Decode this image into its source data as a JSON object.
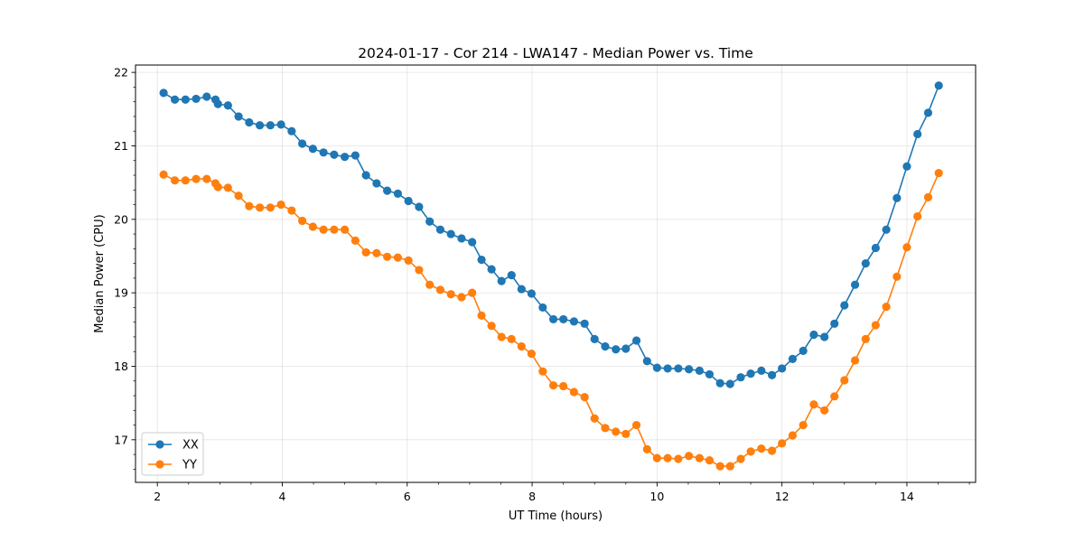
{
  "chart_data": {
    "type": "line",
    "title": "2024-01-17 - Cor 214 - LWA147 - Median Power vs. Time",
    "xlabel": "UT Time (hours)",
    "ylabel": "Median Power (CPU)",
    "xlim": [
      1.65,
      15.1
    ],
    "ylim": [
      16.42,
      22.1
    ],
    "xticks": [
      2,
      4,
      6,
      8,
      10,
      12,
      14
    ],
    "yticks": [
      17,
      18,
      19,
      20,
      21,
      22
    ],
    "grid": true,
    "legend_position": "lower-left",
    "x": [
      2.1,
      2.28,
      2.45,
      2.62,
      2.79,
      2.93,
      2.97,
      3.13,
      3.3,
      3.47,
      3.64,
      3.81,
      3.98,
      4.15,
      4.32,
      4.49,
      4.66,
      4.83,
      5.0,
      5.17,
      5.34,
      5.51,
      5.68,
      5.85,
      6.02,
      6.19,
      6.36,
      6.53,
      6.7,
      6.87,
      7.04,
      7.19,
      7.35,
      7.51,
      7.67,
      7.83,
      7.99,
      8.17,
      8.34,
      8.5,
      8.67,
      8.84,
      9.0,
      9.17,
      9.34,
      9.5,
      9.67,
      9.84,
      10.0,
      10.17,
      10.34,
      10.51,
      10.68,
      10.84,
      11.01,
      11.17,
      11.34,
      11.5,
      11.67,
      11.84,
      12.0,
      12.17,
      12.34,
      12.51,
      12.68,
      12.84,
      13.0,
      13.17,
      13.34,
      13.5,
      13.67,
      13.84,
      14.0,
      14.17,
      14.34,
      14.51
    ],
    "series": [
      {
        "name": "XX",
        "color": "#1f77b4",
        "values": [
          21.72,
          21.63,
          21.63,
          21.64,
          21.67,
          21.63,
          21.57,
          21.55,
          21.4,
          21.32,
          21.28,
          21.28,
          21.29,
          21.2,
          21.03,
          20.96,
          20.91,
          20.88,
          20.85,
          20.87,
          20.6,
          20.49,
          20.39,
          20.35,
          20.25,
          20.17,
          19.97,
          19.86,
          19.8,
          19.74,
          19.69,
          19.45,
          19.32,
          19.16,
          19.24,
          19.05,
          18.99,
          18.8,
          18.64,
          18.64,
          18.61,
          18.58,
          18.37,
          18.27,
          18.23,
          18.24,
          18.35,
          18.07,
          17.98,
          17.97,
          17.97,
          17.96,
          17.94,
          17.89,
          17.77,
          17.76,
          17.85,
          17.9,
          17.94,
          17.88,
          17.97,
          18.1,
          18.21,
          18.43,
          18.4,
          18.58,
          18.83,
          19.11,
          19.4,
          19.61,
          19.86,
          20.29,
          20.72,
          21.16,
          21.45,
          21.82
        ]
      },
      {
        "name": "YY",
        "color": "#ff7f0e",
        "values": [
          20.61,
          20.53,
          20.53,
          20.55,
          20.55,
          20.49,
          20.44,
          20.43,
          20.32,
          20.18,
          20.16,
          20.16,
          20.2,
          20.12,
          19.98,
          19.9,
          19.86,
          19.86,
          19.86,
          19.71,
          19.55,
          19.54,
          19.49,
          19.48,
          19.44,
          19.31,
          19.11,
          19.04,
          18.98,
          18.94,
          19.0,
          18.69,
          18.55,
          18.4,
          18.37,
          18.27,
          18.17,
          17.93,
          17.74,
          17.73,
          17.65,
          17.58,
          17.29,
          17.16,
          17.11,
          17.08,
          17.2,
          16.87,
          16.75,
          16.75,
          16.74,
          16.78,
          16.75,
          16.72,
          16.64,
          16.64,
          16.74,
          16.84,
          16.88,
          16.85,
          16.95,
          17.06,
          17.2,
          17.48,
          17.4,
          17.59,
          17.81,
          18.08,
          18.37,
          18.56,
          18.81,
          19.22,
          19.62,
          20.04,
          20.3,
          20.63
        ]
      }
    ]
  }
}
